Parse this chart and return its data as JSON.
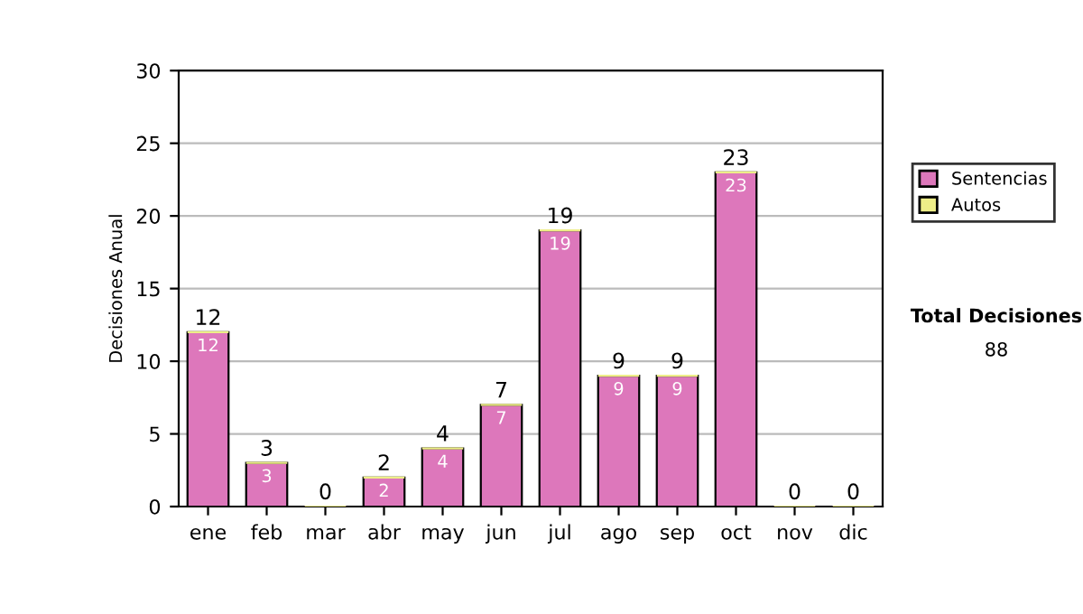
{
  "chart_data": {
    "type": "bar",
    "stacked": true,
    "ylabel": "Decisiones Anual",
    "categories": [
      "ene",
      "feb",
      "mar",
      "abr",
      "may",
      "jun",
      "jul",
      "ago",
      "sep",
      "oct",
      "nov",
      "dic"
    ],
    "series": [
      {
        "name": "Sentencias",
        "color": "#dd77bb",
        "values": [
          12,
          3,
          0,
          2,
          4,
          7,
          19,
          9,
          9,
          23,
          0,
          0
        ],
        "value_labels": [
          "12",
          "3",
          null,
          "2",
          "4",
          "7",
          "19",
          "9",
          "9",
          "23",
          null,
          null
        ]
      },
      {
        "name": "Autos",
        "color": "#eeee88",
        "values": [
          0,
          0,
          0,
          0,
          0,
          0,
          0,
          0,
          0,
          0,
          0,
          0
        ]
      }
    ],
    "totals": [
      "12",
      "3",
      "0",
      "2",
      "4",
      "7",
      "19",
      "9",
      "9",
      "23",
      "0",
      "0"
    ],
    "ylim": [
      0,
      30
    ],
    "yticks": [
      0,
      5,
      10,
      15,
      20,
      25,
      30
    ],
    "grid": "y",
    "legend": "right",
    "annotations": [
      "Total Decisiones",
      "88"
    ]
  }
}
